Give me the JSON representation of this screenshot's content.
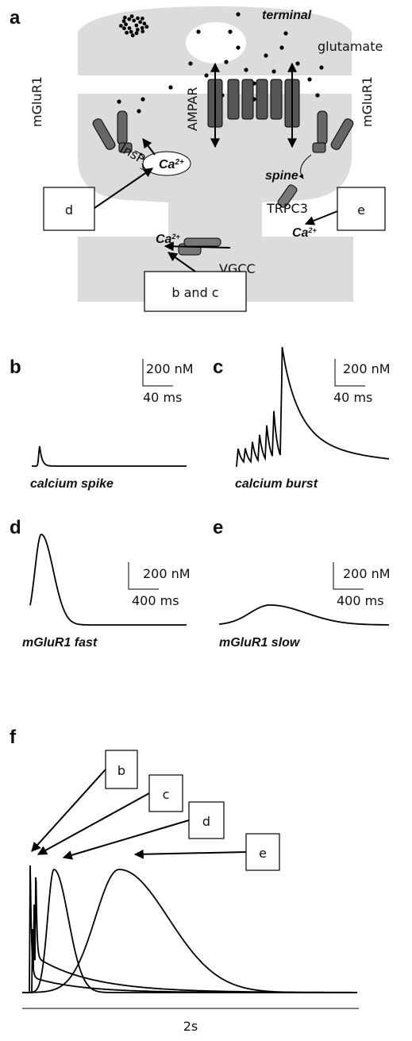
{
  "panel_a": {
    "label": "a",
    "terminal": "terminal",
    "glutamate": "glutamate",
    "mglur1_left": "mGluR1",
    "mglur1_right": "mGluR1",
    "ampar": "AMPAR",
    "insp": "InsP",
    "insp_sub": "3",
    "spine": "spine",
    "ca_spine": "Ca",
    "ca_spine_sup": "2+",
    "trpc3": "TRPC3",
    "ca_trpc3": "Ca",
    "ca_trpc3_sup": "2+",
    "vgcc": "VGCC",
    "ca_vgcc": "Ca",
    "ca_vgcc_sup": "2+",
    "box_d": "d",
    "box_e": "e",
    "box_bc": "b and c"
  },
  "panel_b": {
    "label": "b",
    "scale_y": "200 nM",
    "scale_x": "40 ms",
    "caption": "calcium spike"
  },
  "panel_c": {
    "label": "c",
    "scale_y": "200 nM",
    "scale_x": "40 ms",
    "caption": "calcium burst"
  },
  "panel_d": {
    "label": "d",
    "scale_y": "200 nM",
    "scale_x": "400 ms",
    "caption": "mGluR1 fast"
  },
  "panel_e": {
    "label": "e",
    "scale_y": "200 nM",
    "scale_x": "400 ms",
    "caption": "mGluR1 slow"
  },
  "panel_f": {
    "label": "f",
    "boxes": [
      "b",
      "c",
      "d",
      "e"
    ],
    "scale_x": "2s"
  }
}
